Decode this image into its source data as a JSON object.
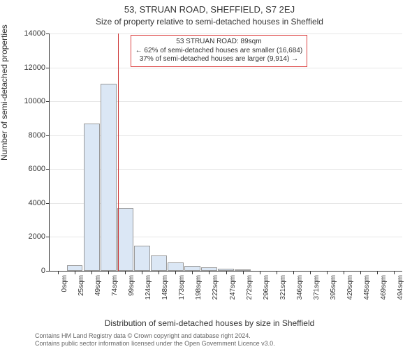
{
  "title_main": "53, STRUAN ROAD, SHEFFIELD, S7 2EJ",
  "title_sub": "Size of property relative to semi-detached houses in Sheffield",
  "y_label": "Number of semi-detached properties",
  "x_label": "Distribution of semi-detached houses by size in Sheffield",
  "footnote_line1": "Contains HM Land Registry data © Crown copyright and database right 2024.",
  "footnote_line2": "Contains public sector information licensed under the Open Government Licence v3.0.",
  "chart": {
    "type": "histogram",
    "background_color": "#ffffff",
    "bar_fill": "#dbe7f5",
    "bar_border": "#999999",
    "grid_color": "#e6e6e6",
    "axis_color": "#333333",
    "marker_color": "#cc3333",
    "infobox_border": "#dd4444",
    "ylim": [
      0,
      14000
    ],
    "ytick_step": 2000,
    "categories": [
      "0sqm",
      "25sqm",
      "49sqm",
      "74sqm",
      "99sqm",
      "124sqm",
      "148sqm",
      "173sqm",
      "198sqm",
      "222sqm",
      "247sqm",
      "272sqm",
      "296sqm",
      "321sqm",
      "346sqm",
      "371sqm",
      "395sqm",
      "420sqm",
      "445sqm",
      "469sqm",
      "494sqm"
    ],
    "values": [
      0,
      350,
      8700,
      11050,
      3700,
      1500,
      900,
      500,
      300,
      200,
      120,
      80,
      0,
      0,
      0,
      0,
      0,
      0,
      0,
      0,
      0
    ],
    "marker_position_x": 89,
    "bin_start": 0,
    "bin_width": 25,
    "info_box": {
      "line1": "53 STRUAN ROAD: 89sqm",
      "line2": "← 62% of semi-detached houses are smaller (16,684)",
      "line3": "37% of semi-detached houses are larger (9,914) →"
    },
    "title_fontsize": 13,
    "subtitle_fontsize": 12,
    "axis_label_fontsize": 12,
    "tick_fontsize": 11,
    "x_tick_fontsize": 10,
    "infobox_fontsize": 10
  }
}
